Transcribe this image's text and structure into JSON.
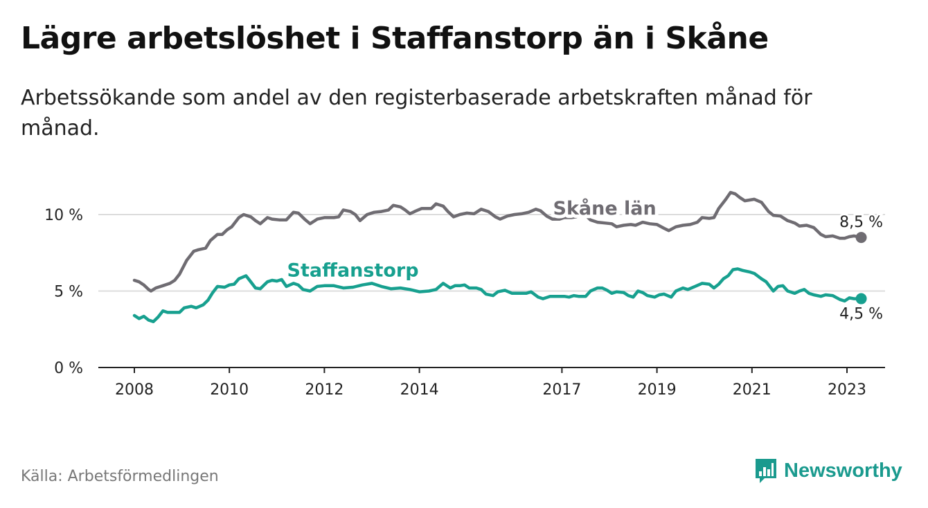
{
  "header": {
    "title": "Lägre arbetslöshet i Staffanstorp än i Skåne",
    "subtitle": "Arbetssökande som andel av den registerbaserade arbetskraften månad för månad."
  },
  "footer": {
    "source": "Källa: Arbetsförmedlingen",
    "brand": "Newsworthy"
  },
  "colors": {
    "skane": "#6f6c72",
    "staffanstorp": "#17a08f",
    "axis": "#222222",
    "grid": "#dcdcdc"
  },
  "chart_data": {
    "type": "line",
    "title": "Lägre arbetslöshet i Staffanstorp än i Skåne",
    "xlabel": "",
    "ylabel": "",
    "x_range": [
      2007.75,
      2024.0
    ],
    "ylim": [
      0,
      12.5
    ],
    "y_ticks": [
      {
        "value": 0,
        "label": "0 %"
      },
      {
        "value": 5,
        "label": "5 %"
      },
      {
        "value": 10,
        "label": "10 %"
      }
    ],
    "x_ticks": [
      {
        "value": 2008,
        "label": "2008"
      },
      {
        "value": 2010,
        "label": "2010"
      },
      {
        "value": 2012,
        "label": "2012"
      },
      {
        "value": 2014,
        "label": "2014"
      },
      {
        "value": 2017,
        "label": "2017"
      },
      {
        "value": 2019,
        "label": "2019"
      },
      {
        "value": 2021,
        "label": "2021"
      },
      {
        "value": 2023,
        "label": "2023"
      }
    ],
    "series": [
      {
        "name": "Skåne län",
        "color": "#6f6c72",
        "end_label": "8,5 %",
        "points": [
          [
            2008.0,
            5.7
          ],
          [
            2008.1,
            5.6
          ],
          [
            2008.2,
            5.4
          ],
          [
            2008.3,
            5.1
          ],
          [
            2008.35,
            5.0
          ],
          [
            2008.45,
            5.2
          ],
          [
            2008.6,
            5.35
          ],
          [
            2008.75,
            5.5
          ],
          [
            2008.85,
            5.7
          ],
          [
            2008.95,
            6.1
          ],
          [
            2009.1,
            7.0
          ],
          [
            2009.25,
            7.6
          ],
          [
            2009.35,
            7.7
          ],
          [
            2009.5,
            7.8
          ],
          [
            2009.6,
            8.3
          ],
          [
            2009.75,
            8.7
          ],
          [
            2009.85,
            8.7
          ],
          [
            2009.95,
            9.0
          ],
          [
            2010.05,
            9.2
          ],
          [
            2010.2,
            9.8
          ],
          [
            2010.3,
            10.0
          ],
          [
            2010.45,
            9.85
          ],
          [
            2010.55,
            9.6
          ],
          [
            2010.65,
            9.4
          ],
          [
            2010.8,
            9.8
          ],
          [
            2010.9,
            9.7
          ],
          [
            2011.05,
            9.65
          ],
          [
            2011.2,
            9.65
          ],
          [
            2011.35,
            10.15
          ],
          [
            2011.45,
            10.1
          ],
          [
            2011.6,
            9.65
          ],
          [
            2011.7,
            9.4
          ],
          [
            2011.85,
            9.7
          ],
          [
            2012.0,
            9.8
          ],
          [
            2012.2,
            9.8
          ],
          [
            2012.3,
            9.85
          ],
          [
            2012.4,
            10.3
          ],
          [
            2012.55,
            10.2
          ],
          [
            2012.65,
            10.0
          ],
          [
            2012.75,
            9.6
          ],
          [
            2012.9,
            10.0
          ],
          [
            2013.05,
            10.15
          ],
          [
            2013.2,
            10.2
          ],
          [
            2013.35,
            10.3
          ],
          [
            2013.45,
            10.6
          ],
          [
            2013.6,
            10.5
          ],
          [
            2013.7,
            10.3
          ],
          [
            2013.8,
            10.05
          ],
          [
            2013.9,
            10.2
          ],
          [
            2014.05,
            10.4
          ],
          [
            2014.25,
            10.4
          ],
          [
            2014.35,
            10.7
          ],
          [
            2014.5,
            10.55
          ],
          [
            2014.6,
            10.2
          ],
          [
            2014.72,
            9.85
          ],
          [
            2014.85,
            10.0
          ],
          [
            2015.0,
            10.1
          ],
          [
            2015.15,
            10.05
          ],
          [
            2015.3,
            10.35
          ],
          [
            2015.45,
            10.2
          ],
          [
            2015.6,
            9.85
          ],
          [
            2015.7,
            9.7
          ],
          [
            2015.85,
            9.9
          ],
          [
            2016.0,
            10.0
          ],
          [
            2016.15,
            10.05
          ],
          [
            2016.3,
            10.15
          ],
          [
            2016.45,
            10.35
          ],
          [
            2016.55,
            10.25
          ],
          [
            2016.68,
            9.9
          ],
          [
            2016.8,
            9.7
          ],
          [
            2016.95,
            9.7
          ],
          [
            2017.05,
            9.8
          ],
          [
            2017.2,
            9.8
          ],
          [
            2017.3,
            9.85
          ],
          [
            2017.45,
            10.1
          ],
          [
            2017.6,
            9.65
          ],
          [
            2017.75,
            9.5
          ],
          [
            2017.9,
            9.45
          ],
          [
            2018.05,
            9.4
          ],
          [
            2018.15,
            9.2
          ],
          [
            2018.3,
            9.3
          ],
          [
            2018.45,
            9.35
          ],
          [
            2018.55,
            9.3
          ],
          [
            2018.7,
            9.5
          ],
          [
            2018.85,
            9.4
          ],
          [
            2019.0,
            9.35
          ],
          [
            2019.15,
            9.1
          ],
          [
            2019.25,
            8.95
          ],
          [
            2019.4,
            9.2
          ],
          [
            2019.55,
            9.3
          ],
          [
            2019.7,
            9.35
          ],
          [
            2019.85,
            9.5
          ],
          [
            2019.95,
            9.8
          ],
          [
            2020.1,
            9.75
          ],
          [
            2020.2,
            9.8
          ],
          [
            2020.3,
            10.4
          ],
          [
            2020.45,
            11.0
          ],
          [
            2020.55,
            11.45
          ],
          [
            2020.65,
            11.35
          ],
          [
            2020.75,
            11.1
          ],
          [
            2020.85,
            10.9
          ],
          [
            2020.95,
            10.95
          ],
          [
            2021.05,
            11.0
          ],
          [
            2021.2,
            10.8
          ],
          [
            2021.35,
            10.2
          ],
          [
            2021.45,
            9.95
          ],
          [
            2021.6,
            9.9
          ],
          [
            2021.75,
            9.6
          ],
          [
            2021.9,
            9.45
          ],
          [
            2022.0,
            9.25
          ],
          [
            2022.15,
            9.3
          ],
          [
            2022.3,
            9.15
          ],
          [
            2022.45,
            8.7
          ],
          [
            2022.55,
            8.55
          ],
          [
            2022.7,
            8.6
          ],
          [
            2022.85,
            8.45
          ],
          [
            2022.95,
            8.45
          ],
          [
            2023.05,
            8.55
          ],
          [
            2023.15,
            8.6
          ],
          [
            2023.3,
            8.5
          ]
        ]
      },
      {
        "name": "Staffanstorp",
        "color": "#17a08f",
        "end_label": "4,5 %",
        "points": [
          [
            2008.0,
            3.4
          ],
          [
            2008.1,
            3.2
          ],
          [
            2008.2,
            3.35
          ],
          [
            2008.3,
            3.1
          ],
          [
            2008.4,
            3.0
          ],
          [
            2008.5,
            3.3
          ],
          [
            2008.6,
            3.7
          ],
          [
            2008.7,
            3.6
          ],
          [
            2008.85,
            3.6
          ],
          [
            2008.95,
            3.6
          ],
          [
            2009.05,
            3.9
          ],
          [
            2009.2,
            4.0
          ],
          [
            2009.3,
            3.9
          ],
          [
            2009.45,
            4.1
          ],
          [
            2009.55,
            4.4
          ],
          [
            2009.65,
            4.9
          ],
          [
            2009.75,
            5.3
          ],
          [
            2009.9,
            5.25
          ],
          [
            2010.0,
            5.4
          ],
          [
            2010.1,
            5.45
          ],
          [
            2010.2,
            5.8
          ],
          [
            2010.35,
            6.0
          ],
          [
            2010.45,
            5.6
          ],
          [
            2010.55,
            5.2
          ],
          [
            2010.65,
            5.15
          ],
          [
            2010.8,
            5.6
          ],
          [
            2010.9,
            5.7
          ],
          [
            2011.0,
            5.65
          ],
          [
            2011.1,
            5.75
          ],
          [
            2011.2,
            5.3
          ],
          [
            2011.35,
            5.5
          ],
          [
            2011.45,
            5.4
          ],
          [
            2011.55,
            5.1
          ],
          [
            2011.7,
            5.0
          ],
          [
            2011.85,
            5.3
          ],
          [
            2012.0,
            5.35
          ],
          [
            2012.2,
            5.35
          ],
          [
            2012.4,
            5.2
          ],
          [
            2012.6,
            5.25
          ],
          [
            2012.8,
            5.4
          ],
          [
            2013.0,
            5.5
          ],
          [
            2013.2,
            5.3
          ],
          [
            2013.4,
            5.15
          ],
          [
            2013.6,
            5.2
          ],
          [
            2013.8,
            5.1
          ],
          [
            2014.0,
            4.95
          ],
          [
            2014.2,
            5.0
          ],
          [
            2014.35,
            5.1
          ],
          [
            2014.5,
            5.5
          ],
          [
            2014.65,
            5.2
          ],
          [
            2014.75,
            5.35
          ],
          [
            2014.85,
            5.35
          ],
          [
            2014.95,
            5.4
          ],
          [
            2015.05,
            5.2
          ],
          [
            2015.2,
            5.2
          ],
          [
            2015.3,
            5.1
          ],
          [
            2015.4,
            4.8
          ],
          [
            2015.55,
            4.7
          ],
          [
            2015.65,
            4.95
          ],
          [
            2015.8,
            5.05
          ],
          [
            2015.95,
            4.85
          ],
          [
            2016.1,
            4.85
          ],
          [
            2016.25,
            4.85
          ],
          [
            2016.35,
            4.95
          ],
          [
            2016.5,
            4.6
          ],
          [
            2016.6,
            4.5
          ],
          [
            2016.75,
            4.65
          ],
          [
            2016.9,
            4.65
          ],
          [
            2017.05,
            4.65
          ],
          [
            2017.15,
            4.6
          ],
          [
            2017.25,
            4.7
          ],
          [
            2017.35,
            4.65
          ],
          [
            2017.5,
            4.65
          ],
          [
            2017.6,
            5.0
          ],
          [
            2017.75,
            5.2
          ],
          [
            2017.85,
            5.2
          ],
          [
            2017.95,
            5.05
          ],
          [
            2018.05,
            4.85
          ],
          [
            2018.15,
            4.95
          ],
          [
            2018.3,
            4.9
          ],
          [
            2018.4,
            4.7
          ],
          [
            2018.5,
            4.6
          ],
          [
            2018.6,
            5.0
          ],
          [
            2018.7,
            4.9
          ],
          [
            2018.8,
            4.7
          ],
          [
            2018.95,
            4.6
          ],
          [
            2019.05,
            4.75
          ],
          [
            2019.15,
            4.8
          ],
          [
            2019.3,
            4.6
          ],
          [
            2019.4,
            5.0
          ],
          [
            2019.55,
            5.2
          ],
          [
            2019.65,
            5.1
          ],
          [
            2019.8,
            5.3
          ],
          [
            2019.95,
            5.5
          ],
          [
            2020.1,
            5.45
          ],
          [
            2020.2,
            5.2
          ],
          [
            2020.3,
            5.45
          ],
          [
            2020.4,
            5.8
          ],
          [
            2020.5,
            6.0
          ],
          [
            2020.6,
            6.4
          ],
          [
            2020.7,
            6.45
          ],
          [
            2020.8,
            6.35
          ],
          [
            2020.95,
            6.25
          ],
          [
            2021.05,
            6.15
          ],
          [
            2021.2,
            5.8
          ],
          [
            2021.3,
            5.6
          ],
          [
            2021.45,
            5.0
          ],
          [
            2021.55,
            5.3
          ],
          [
            2021.65,
            5.35
          ],
          [
            2021.75,
            5.0
          ],
          [
            2021.9,
            4.85
          ],
          [
            2022.0,
            5.0
          ],
          [
            2022.1,
            5.1
          ],
          [
            2022.2,
            4.85
          ],
          [
            2022.3,
            4.75
          ],
          [
            2022.45,
            4.65
          ],
          [
            2022.55,
            4.75
          ],
          [
            2022.7,
            4.7
          ],
          [
            2022.85,
            4.45
          ],
          [
            2022.95,
            4.35
          ],
          [
            2023.05,
            4.55
          ],
          [
            2023.15,
            4.5
          ],
          [
            2023.3,
            4.5
          ]
        ]
      }
    ],
    "annotations": [
      {
        "series": "Skåne län",
        "text": "Skåne län",
        "x": 2017.9,
        "y": 10.0
      },
      {
        "series": "Staffanstorp",
        "text": "Staffanstorp",
        "x": 2012.6,
        "y": 5.95
      }
    ]
  }
}
